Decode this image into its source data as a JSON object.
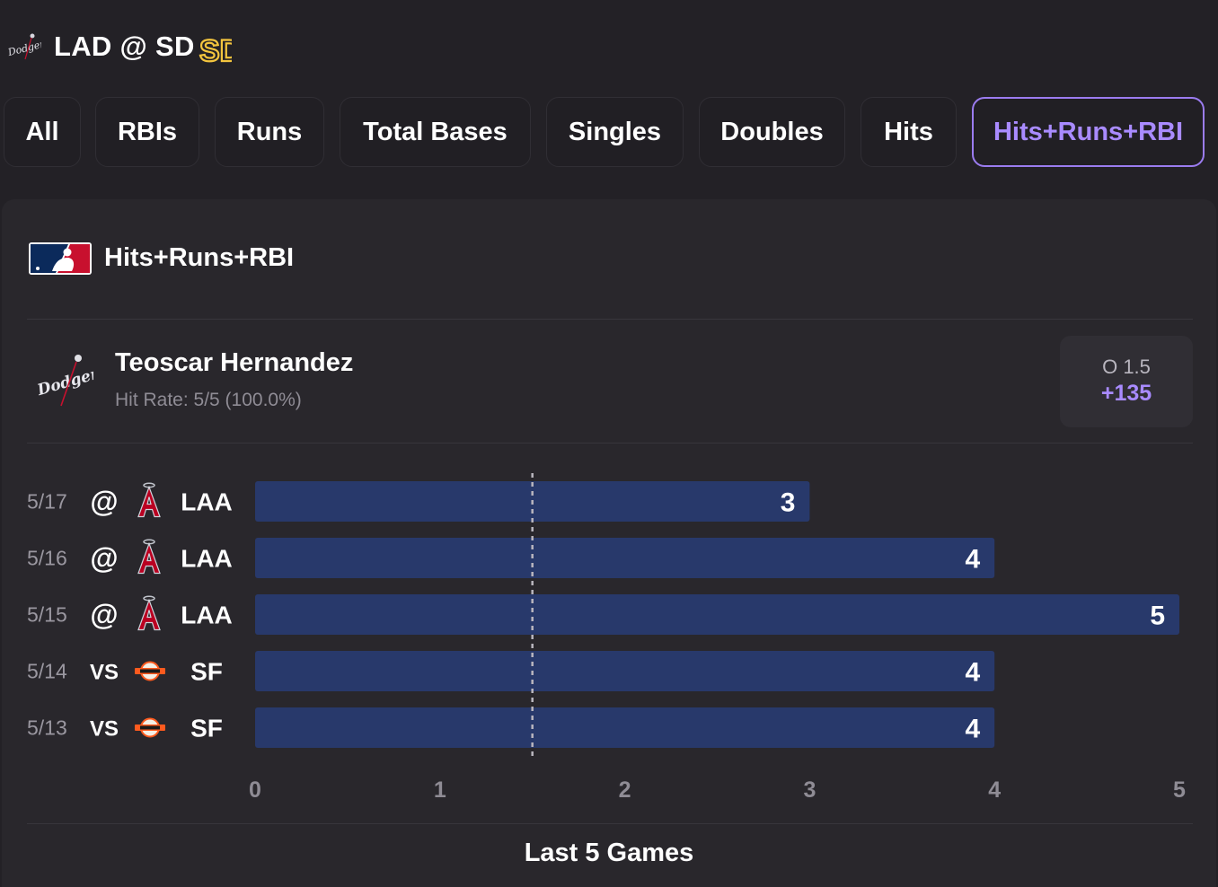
{
  "header": {
    "title": "LAD @ SD",
    "away_logo_icon": "dodgers-logo-icon",
    "home_logo_icon": "padres-sd-logo-icon",
    "home_logo_text": "SD"
  },
  "tabs": [
    {
      "label": "All",
      "active": false
    },
    {
      "label": "RBIs",
      "active": false
    },
    {
      "label": "Runs",
      "active": false
    },
    {
      "label": "Total Bases",
      "active": false
    },
    {
      "label": "Singles",
      "active": false
    },
    {
      "label": "Doubles",
      "active": false
    },
    {
      "label": "Hits",
      "active": false
    },
    {
      "label": "Hits+Runs+RBI",
      "active": true
    }
  ],
  "market": {
    "title": "Hits+Runs+RBI",
    "league_icon": "mlb-logo-icon"
  },
  "player": {
    "name": "Teoscar Hernandez",
    "hit_rate": "Hit Rate: 5/5 (100.0%)",
    "team_logo_icon": "dodgers-logo-icon",
    "team_logo_text": "Dodgers"
  },
  "odds": {
    "line": "O 1.5",
    "price": "+135"
  },
  "colors": {
    "background": "#232126",
    "panel": "#29272c",
    "accent": "#a98bff",
    "bar": "#28396b"
  },
  "chart_data": {
    "type": "bar",
    "orientation": "horizontal",
    "title": "Last 5 Games",
    "categories": [
      "5/17",
      "5/16",
      "5/15",
      "5/14",
      "5/13"
    ],
    "games": [
      {
        "date": "5/17",
        "location": "@",
        "opponent": "LAA",
        "opponent_icon": "angels-logo-icon"
      },
      {
        "date": "5/16",
        "location": "@",
        "opponent": "LAA",
        "opponent_icon": "angels-logo-icon"
      },
      {
        "date": "5/15",
        "location": "@",
        "opponent": "LAA",
        "opponent_icon": "angels-logo-icon"
      },
      {
        "date": "5/14",
        "location": "VS",
        "opponent": "SF",
        "opponent_icon": "giants-logo-icon"
      },
      {
        "date": "5/13",
        "location": "VS",
        "opponent": "SF",
        "opponent_icon": "giants-logo-icon"
      }
    ],
    "values": [
      3,
      4,
      5,
      4,
      4
    ],
    "xlim": [
      0,
      5
    ],
    "ticks": [
      "0",
      "1",
      "2",
      "3",
      "4",
      "5"
    ],
    "reference_line": 1.5,
    "grid": false
  }
}
